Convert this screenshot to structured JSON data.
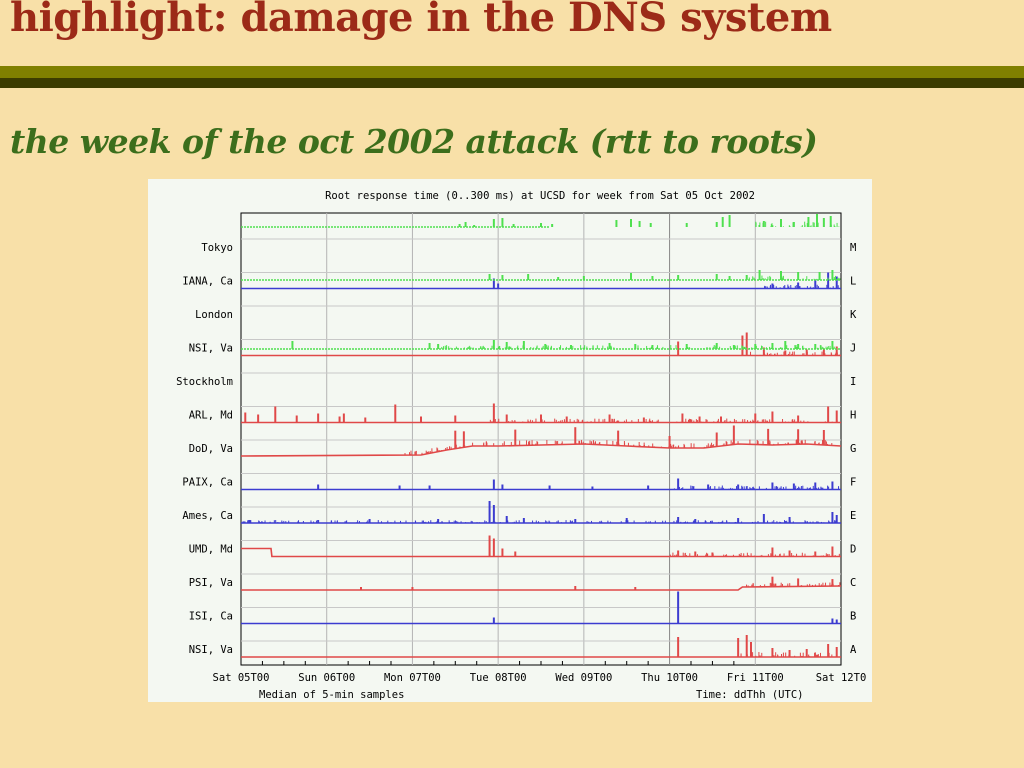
{
  "slide": {
    "title": "highlight: damage in the DNS system",
    "subtitle": "the week of the oct 2002 attack (rtt to roots)"
  },
  "colors": {
    "background": "#f8e0a8",
    "title": "#9c2a18",
    "subtitle": "#3c6e1c",
    "rule_olive": "#808000",
    "rule_dark": "#3c3c00",
    "series_green": "#4fe04f",
    "series_blue": "#3c3cd0",
    "series_red": "#e04848"
  },
  "chart_data": {
    "type": "line",
    "title": "Root response time (0..300 ms) at UCSD for week from Sat 05 Oct 2002",
    "xlabel": "Median of 5-min samples",
    "x_axis_note": "Time: ddThh (UTC)",
    "x_ticks": [
      "Sat 05T00",
      "Sun 06T00",
      "Mon 07T00",
      "Tue 08T00",
      "Wed 09T00",
      "Thu 10T00",
      "Fri 11T00",
      "Sat 12T0"
    ],
    "x_range_days": [
      0,
      7
    ],
    "y_range_ms": [
      0,
      300
    ],
    "grid": true,
    "series": [
      {
        "name": "Tokyo",
        "server": "M",
        "color": "#4fe04f",
        "kind": "sparse",
        "baseline": [
          [
            0,
            2.8
          ],
          [
            3.6,
            2.8
          ]
        ],
        "spikes": [
          [
            2.55,
            0.3
          ],
          [
            2.62,
            0.5
          ],
          [
            2.72,
            0.2
          ],
          [
            2.95,
            0.8
          ],
          [
            3.05,
            0.9
          ],
          [
            3.18,
            0.3
          ],
          [
            3.5,
            0.4
          ],
          [
            3.63,
            0.3
          ],
          [
            4.38,
            0.7
          ],
          [
            4.55,
            0.8
          ],
          [
            4.65,
            0.6
          ],
          [
            4.78,
            0.4
          ],
          [
            5.2,
            0.4
          ],
          [
            5.55,
            0.5
          ],
          [
            5.62,
            1.0
          ],
          [
            5.7,
            1.2
          ],
          [
            6.1,
            0.6
          ],
          [
            6.3,
            0.8
          ],
          [
            6.45,
            0.5
          ],
          [
            6.62,
            1.0
          ],
          [
            6.72,
            1.3
          ],
          [
            6.8,
            0.9
          ],
          [
            6.88,
            1.1
          ]
        ],
        "events": [
          [
            6.0,
            7.0,
            0.6
          ]
        ]
      },
      {
        "name": "IANA, Ca",
        "server": "L",
        "color": "#3c3cd0",
        "kind": "steady",
        "baseline": [
          [
            0,
            0
          ],
          [
            7,
            0
          ]
        ],
        "spikes": [
          [
            2.95,
            1.0
          ],
          [
            3.0,
            0.5
          ],
          [
            6.2,
            0.5
          ],
          [
            6.5,
            0.6
          ],
          [
            6.7,
            0.9
          ],
          [
            6.85,
            1.6
          ],
          [
            6.95,
            1.2
          ]
        ],
        "events": [
          [
            6.1,
            7.0,
            0.4
          ]
        ]
      },
      {
        "name": "London",
        "server": "K",
        "color": "#4fe04f",
        "kind": "sparse",
        "baseline": [
          [
            0,
            4.2
          ],
          [
            7,
            4.2
          ]
        ],
        "spikes": [
          [
            2.9,
            0.6
          ],
          [
            3.05,
            0.5
          ],
          [
            3.35,
            0.6
          ],
          [
            3.7,
            0.3
          ],
          [
            4.0,
            0.4
          ],
          [
            4.55,
            0.7
          ],
          [
            4.8,
            0.4
          ],
          [
            5.1,
            0.5
          ],
          [
            5.55,
            0.6
          ],
          [
            5.7,
            0.4
          ],
          [
            5.9,
            0.5
          ],
          [
            6.05,
            1.0
          ],
          [
            6.3,
            0.9
          ],
          [
            6.5,
            0.8
          ],
          [
            6.75,
            0.8
          ],
          [
            6.9,
            1.0
          ]
        ],
        "events": [
          [
            5.9,
            7.0,
            0.5
          ]
        ]
      },
      {
        "name": "NSI, Va",
        "server": "J",
        "color": "#e04848",
        "kind": "steady",
        "baseline": [
          [
            0,
            0
          ],
          [
            7,
            0
          ]
        ],
        "spikes": [
          [
            5.1,
            1.4
          ],
          [
            5.85,
            2.0
          ],
          [
            5.9,
            2.3
          ],
          [
            6.1,
            0.8
          ],
          [
            6.35,
            0.5
          ],
          [
            6.6,
            0.6
          ],
          [
            6.8,
            0.7
          ],
          [
            6.95,
            0.9
          ]
        ],
        "events": [
          [
            5.85,
            7.0,
            0.4
          ]
        ]
      },
      {
        "name": "Stockholm",
        "server": "I",
        "color": "#4fe04f",
        "kind": "sparse",
        "baseline": [
          [
            0,
            4.0
          ],
          [
            7,
            4.0
          ]
        ],
        "spikes": [
          [
            0.6,
            0.8
          ],
          [
            2.2,
            0.6
          ],
          [
            2.3,
            0.5
          ],
          [
            2.95,
            0.9
          ],
          [
            3.1,
            0.7
          ],
          [
            3.3,
            0.8
          ],
          [
            3.55,
            0.5
          ],
          [
            3.85,
            0.4
          ],
          [
            4.3,
            0.6
          ],
          [
            4.6,
            0.5
          ],
          [
            4.8,
            0.4
          ],
          [
            5.2,
            0.5
          ],
          [
            5.55,
            0.6
          ],
          [
            5.75,
            0.4
          ],
          [
            6.0,
            0.5
          ],
          [
            6.2,
            0.6
          ],
          [
            6.35,
            0.8
          ],
          [
            6.5,
            0.5
          ],
          [
            6.7,
            0.5
          ],
          [
            6.9,
            0.8
          ]
        ],
        "events": [
          [
            2.2,
            7.0,
            0.4
          ]
        ]
      },
      {
        "name": "ARL, Md",
        "server": "H",
        "color": "#e04848",
        "kind": "steady",
        "baseline": [
          [
            0,
            0
          ],
          [
            7,
            0
          ]
        ],
        "spikes": [
          [
            0.05,
            1.0
          ],
          [
            0.2,
            0.8
          ],
          [
            0.4,
            1.6
          ],
          [
            0.65,
            0.7
          ],
          [
            0.9,
            0.9
          ],
          [
            1.15,
            0.6
          ],
          [
            1.2,
            0.9
          ],
          [
            1.45,
            0.5
          ],
          [
            1.8,
            1.8
          ],
          [
            2.1,
            0.6
          ],
          [
            2.5,
            0.7
          ],
          [
            2.95,
            1.9
          ],
          [
            3.1,
            0.8
          ],
          [
            3.5,
            0.8
          ],
          [
            3.8,
            0.6
          ],
          [
            4.3,
            0.8
          ],
          [
            4.7,
            0.5
          ],
          [
            5.15,
            0.9
          ],
          [
            5.35,
            0.6
          ],
          [
            5.6,
            0.6
          ],
          [
            6.0,
            0.9
          ],
          [
            6.2,
            1.1
          ],
          [
            6.5,
            0.7
          ],
          [
            6.85,
            1.6
          ],
          [
            6.95,
            1.2
          ]
        ],
        "events": [
          [
            2.9,
            7.0,
            0.4
          ]
        ]
      },
      {
        "name": "DoD, Va",
        "server": "G",
        "color": "#e04848",
        "kind": "steady",
        "baseline": [
          [
            0,
            0
          ],
          [
            2.1,
            0.1
          ],
          [
            2.4,
            0.6
          ],
          [
            2.7,
            1.0
          ],
          [
            3.0,
            1.0
          ],
          [
            3.5,
            1.1
          ],
          [
            4.0,
            1.2
          ],
          [
            4.5,
            1.0
          ],
          [
            5.0,
            0.8
          ],
          [
            5.4,
            0.8
          ],
          [
            5.8,
            1.2
          ],
          [
            6.2,
            1.1
          ],
          [
            6.6,
            1.2
          ],
          [
            7,
            1.0
          ]
        ],
        "spikes": [
          [
            2.5,
            1.8
          ],
          [
            2.6,
            1.6
          ],
          [
            3.2,
            1.6
          ],
          [
            3.9,
            1.7
          ],
          [
            4.4,
            1.5
          ],
          [
            5.0,
            1.2
          ],
          [
            5.55,
            1.4
          ],
          [
            5.75,
            1.9
          ],
          [
            6.15,
            1.6
          ],
          [
            6.5,
            1.5
          ],
          [
            6.8,
            1.5
          ]
        ],
        "events": [
          [
            1.9,
            7.0,
            0.5
          ]
        ]
      },
      {
        "name": "PAIX, Ca",
        "server": "F",
        "color": "#3c3cd0",
        "kind": "steady",
        "baseline": [
          [
            0,
            0
          ],
          [
            7,
            0
          ]
        ],
        "spikes": [
          [
            0.9,
            0.5
          ],
          [
            1.85,
            0.4
          ],
          [
            2.2,
            0.4
          ],
          [
            2.95,
            1.0
          ],
          [
            3.05,
            0.5
          ],
          [
            3.6,
            0.4
          ],
          [
            4.1,
            0.3
          ],
          [
            4.75,
            0.4
          ],
          [
            5.1,
            1.1
          ],
          [
            5.45,
            0.5
          ],
          [
            5.8,
            0.5
          ],
          [
            6.2,
            0.7
          ],
          [
            6.45,
            0.6
          ],
          [
            6.7,
            0.7
          ],
          [
            6.9,
            0.8
          ]
        ],
        "events": [
          [
            5.0,
            7.0,
            0.4
          ]
        ]
      },
      {
        "name": "Ames, Ca",
        "server": "E",
        "color": "#3c3cd0",
        "kind": "steady",
        "baseline": [
          [
            0,
            0
          ],
          [
            7,
            0
          ]
        ],
        "spikes": [
          [
            0.1,
            0.3
          ],
          [
            0.9,
            0.3
          ],
          [
            1.5,
            0.4
          ],
          [
            2.3,
            0.4
          ],
          [
            2.9,
            2.2
          ],
          [
            2.95,
            1.8
          ],
          [
            3.1,
            0.7
          ],
          [
            3.3,
            0.5
          ],
          [
            3.9,
            0.4
          ],
          [
            4.5,
            0.5
          ],
          [
            5.1,
            0.6
          ],
          [
            5.3,
            0.4
          ],
          [
            5.8,
            0.5
          ],
          [
            6.1,
            0.9
          ],
          [
            6.4,
            0.6
          ],
          [
            6.9,
            1.1
          ],
          [
            6.95,
            0.8
          ]
        ],
        "events": [
          [
            0,
            7.0,
            0.3
          ]
        ]
      },
      {
        "name": "UMD, Md",
        "server": "D",
        "color": "#e04848",
        "kind": "steady",
        "baseline": [
          [
            0,
            0.8
          ],
          [
            0.35,
            0.8
          ],
          [
            0.36,
            0
          ],
          [
            7,
            0
          ]
        ],
        "spikes": [
          [
            2.9,
            2.1
          ],
          [
            2.95,
            1.8
          ],
          [
            3.05,
            0.8
          ],
          [
            3.2,
            0.5
          ],
          [
            5.1,
            0.6
          ],
          [
            5.3,
            0.5
          ],
          [
            5.5,
            0.4
          ],
          [
            6.2,
            0.9
          ],
          [
            6.4,
            0.6
          ],
          [
            6.7,
            0.5
          ],
          [
            6.9,
            1.0
          ]
        ],
        "events": [
          [
            5.0,
            7.0,
            0.4
          ]
        ]
      },
      {
        "name": "PSI, Va",
        "server": "C",
        "color": "#e04848",
        "kind": "steady",
        "baseline": [
          [
            0,
            0
          ],
          [
            5.8,
            0
          ],
          [
            5.85,
            0.3
          ],
          [
            7,
            0.4
          ]
        ],
        "spikes": [
          [
            1.4,
            0.3
          ],
          [
            2.0,
            0.3
          ],
          [
            3.9,
            0.4
          ],
          [
            4.6,
            0.3
          ],
          [
            6.2,
            1.0
          ],
          [
            6.5,
            0.8
          ],
          [
            6.9,
            0.7
          ]
        ],
        "events": [
          [
            5.85,
            7.0,
            0.4
          ]
        ]
      },
      {
        "name": "ISI, Ca",
        "server": "B",
        "color": "#3c3cd0",
        "kind": "steady",
        "baseline": [
          [
            0,
            0
          ],
          [
            7,
            0
          ]
        ],
        "spikes": [
          [
            2.95,
            0.6
          ],
          [
            5.1,
            3.2
          ],
          [
            6.9,
            0.5
          ],
          [
            6.95,
            0.4
          ]
        ],
        "events": []
      },
      {
        "name": "NSI, Va",
        "server": "A",
        "color": "#e04848",
        "kind": "steady",
        "baseline": [
          [
            0,
            0
          ],
          [
            7,
            0
          ]
        ],
        "spikes": [
          [
            5.1,
            2.0
          ],
          [
            5.8,
            1.9
          ],
          [
            5.9,
            2.2
          ],
          [
            5.95,
            1.5
          ],
          [
            6.2,
            0.9
          ],
          [
            6.4,
            0.7
          ],
          [
            6.6,
            0.8
          ],
          [
            6.85,
            1.3
          ],
          [
            6.95,
            1.0
          ]
        ],
        "events": [
          [
            5.8,
            7.0,
            0.5
          ]
        ]
      }
    ]
  }
}
